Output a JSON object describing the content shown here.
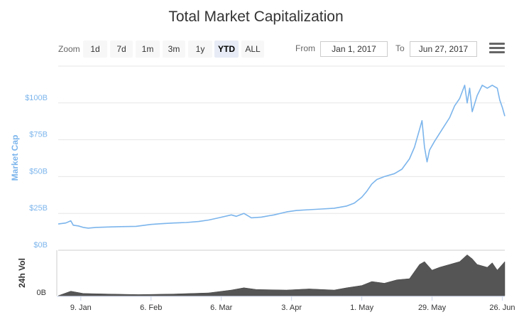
{
  "chart_data": {
    "type": "line",
    "title": "Total Market Capitalization",
    "ylabel": "Market Cap",
    "y2label": "24h Vol",
    "x_tick_labels": [
      "9. Jan",
      "6. Feb",
      "6. Mar",
      "3. Apr",
      "1. May",
      "29. May",
      "26. Jun"
    ],
    "y_tick_labels": [
      "$0B",
      "$25B",
      "$50B",
      "$75B",
      "$100B"
    ],
    "vol_tick_label": "0B",
    "ylim": [
      0,
      125
    ],
    "xrange": [
      "2016-12-31",
      "2017-06-27"
    ],
    "series": [
      {
        "color": "#7cb5ec",
        "points": [
          [
            "2016-12-31",
            17.8
          ],
          [
            "2017-01-03",
            18.5
          ],
          [
            "2017-01-05",
            20.0
          ],
          [
            "2017-01-06",
            17.0
          ],
          [
            "2017-01-08",
            16.5
          ],
          [
            "2017-01-10",
            15.5
          ],
          [
            "2017-01-12",
            15.0
          ],
          [
            "2017-01-15",
            15.5
          ],
          [
            "2017-01-20",
            15.8
          ],
          [
            "2017-01-25",
            16.0
          ],
          [
            "2017-01-31",
            16.2
          ],
          [
            "2017-02-06",
            17.5
          ],
          [
            "2017-02-10",
            18.0
          ],
          [
            "2017-02-15",
            18.5
          ],
          [
            "2017-02-20",
            18.8
          ],
          [
            "2017-02-25",
            19.5
          ],
          [
            "2017-03-01",
            20.5
          ],
          [
            "2017-03-05",
            22.0
          ],
          [
            "2017-03-10",
            24.0
          ],
          [
            "2017-03-12",
            23.0
          ],
          [
            "2017-03-15",
            25.0
          ],
          [
            "2017-03-18",
            22.0
          ],
          [
            "2017-03-22",
            22.5
          ],
          [
            "2017-03-27",
            24.0
          ],
          [
            "2017-04-01",
            26.0
          ],
          [
            "2017-04-05",
            27.0
          ],
          [
            "2017-04-10",
            27.5
          ],
          [
            "2017-04-15",
            28.0
          ],
          [
            "2017-04-20",
            28.5
          ],
          [
            "2017-04-25",
            30.0
          ],
          [
            "2017-04-28",
            32.0
          ],
          [
            "2017-05-01",
            36.0
          ],
          [
            "2017-05-03",
            40.0
          ],
          [
            "2017-05-05",
            45.0
          ],
          [
            "2017-05-07",
            48.0
          ],
          [
            "2017-05-10",
            50.0
          ],
          [
            "2017-05-14",
            52.0
          ],
          [
            "2017-05-17",
            55.0
          ],
          [
            "2017-05-20",
            62.0
          ],
          [
            "2017-05-22",
            70.0
          ],
          [
            "2017-05-24",
            82.0
          ],
          [
            "2017-05-25",
            88.0
          ],
          [
            "2017-05-26",
            70.0
          ],
          [
            "2017-05-27",
            60.0
          ],
          [
            "2017-05-28",
            68.0
          ],
          [
            "2017-05-30",
            74.0
          ],
          [
            "2017-06-02",
            82.0
          ],
          [
            "2017-06-05",
            90.0
          ],
          [
            "2017-06-07",
            98.0
          ],
          [
            "2017-06-09",
            103.0
          ],
          [
            "2017-06-11",
            112.0
          ],
          [
            "2017-06-12",
            100.0
          ],
          [
            "2017-06-13",
            110.0
          ],
          [
            "2017-06-14",
            94.0
          ],
          [
            "2017-06-16",
            105.0
          ],
          [
            "2017-06-18",
            112.0
          ],
          [
            "2017-06-20",
            110.0
          ],
          [
            "2017-06-22",
            112.0
          ],
          [
            "2017-06-24",
            110.0
          ],
          [
            "2017-06-25",
            102.0
          ],
          [
            "2017-06-26",
            97.0
          ],
          [
            "2017-06-27",
            91.0
          ]
        ]
      }
    ],
    "volume": {
      "type": "area",
      "color": "#555555",
      "points": [
        [
          "2016-12-31",
          0
        ],
        [
          "2017-01-05",
          8
        ],
        [
          "2017-01-10",
          4
        ],
        [
          "2017-01-20",
          3
        ],
        [
          "2017-02-01",
          2
        ],
        [
          "2017-02-15",
          3
        ],
        [
          "2017-03-01",
          5
        ],
        [
          "2017-03-10",
          10
        ],
        [
          "2017-03-15",
          14
        ],
        [
          "2017-03-20",
          11
        ],
        [
          "2017-04-01",
          10
        ],
        [
          "2017-04-10",
          12
        ],
        [
          "2017-04-20",
          10
        ],
        [
          "2017-04-25",
          14
        ],
        [
          "2017-05-01",
          18
        ],
        [
          "2017-05-05",
          25
        ],
        [
          "2017-05-10",
          22
        ],
        [
          "2017-05-15",
          28
        ],
        [
          "2017-05-20",
          30
        ],
        [
          "2017-05-24",
          55
        ],
        [
          "2017-05-26",
          60
        ],
        [
          "2017-05-29",
          45
        ],
        [
          "2017-06-01",
          50
        ],
        [
          "2017-06-05",
          55
        ],
        [
          "2017-06-09",
          60
        ],
        [
          "2017-06-12",
          72
        ],
        [
          "2017-06-14",
          65
        ],
        [
          "2017-06-16",
          55
        ],
        [
          "2017-06-20",
          50
        ],
        [
          "2017-06-22",
          58
        ],
        [
          "2017-06-24",
          45
        ],
        [
          "2017-06-27",
          60
        ]
      ]
    },
    "grid": true
  },
  "toolbar": {
    "zoom_label": "Zoom",
    "buttons": [
      "1d",
      "7d",
      "1m",
      "3m",
      "1y",
      "YTD",
      "ALL"
    ],
    "active": "YTD",
    "from_label": "From",
    "from_value": "Jan 1, 2017",
    "to_label": "To",
    "to_value": "Jun 27, 2017",
    "menu_icon": "hamburger-menu-icon"
  }
}
